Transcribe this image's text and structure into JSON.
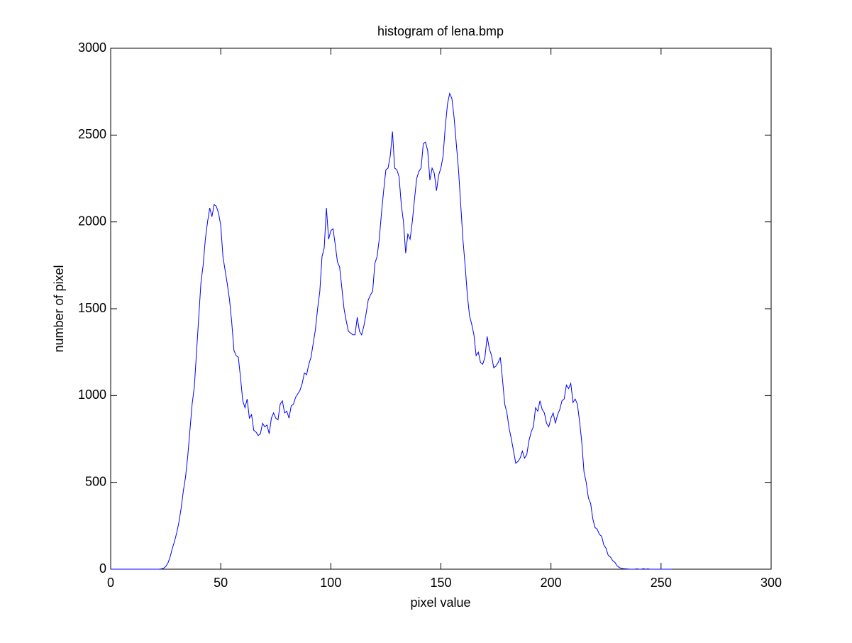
{
  "chart_data": {
    "type": "line",
    "title": "histogram of lena.bmp",
    "x_label": "pixel value",
    "y_label": "number of pixel",
    "x": [
      0,
      1,
      2,
      3,
      4,
      5,
      6,
      7,
      8,
      9,
      10,
      11,
      12,
      13,
      14,
      15,
      16,
      17,
      18,
      19,
      20,
      21,
      22,
      23,
      24,
      25,
      26,
      27,
      28,
      29,
      30,
      31,
      32,
      33,
      34,
      35,
      36,
      37,
      38,
      39,
      40,
      41,
      42,
      43,
      44,
      45,
      46,
      47,
      48,
      49,
      50,
      51,
      52,
      53,
      54,
      55,
      56,
      57,
      58,
      59,
      60,
      61,
      62,
      63,
      64,
      65,
      66,
      67,
      68,
      69,
      70,
      71,
      72,
      73,
      74,
      75,
      76,
      77,
      78,
      79,
      80,
      81,
      82,
      83,
      84,
      85,
      86,
      87,
      88,
      89,
      90,
      91,
      92,
      93,
      94,
      95,
      96,
      97,
      98,
      99,
      100,
      101,
      102,
      103,
      104,
      105,
      106,
      107,
      108,
      109,
      110,
      111,
      112,
      113,
      114,
      115,
      116,
      117,
      118,
      119,
      120,
      121,
      122,
      123,
      124,
      125,
      126,
      127,
      128,
      129,
      130,
      131,
      132,
      133,
      134,
      135,
      136,
      137,
      138,
      139,
      140,
      141,
      142,
      143,
      144,
      145,
      146,
      147,
      148,
      149,
      150,
      151,
      152,
      153,
      154,
      155,
      156,
      157,
      158,
      159,
      160,
      161,
      162,
      163,
      164,
      165,
      166,
      167,
      168,
      169,
      170,
      171,
      172,
      173,
      174,
      175,
      176,
      177,
      178,
      179,
      180,
      181,
      182,
      183,
      184,
      185,
      186,
      187,
      188,
      189,
      190,
      191,
      192,
      193,
      194,
      195,
      196,
      197,
      198,
      199,
      200,
      201,
      202,
      203,
      204,
      205,
      206,
      207,
      208,
      209,
      210,
      211,
      212,
      213,
      214,
      215,
      216,
      217,
      218,
      219,
      220,
      221,
      222,
      223,
      224,
      225,
      226,
      227,
      228,
      229,
      230,
      231,
      232,
      233,
      234,
      235,
      236,
      237,
      238,
      239,
      240,
      241,
      242,
      243,
      244,
      245,
      246,
      247,
      248,
      249,
      250,
      251,
      252,
      253,
      254,
      255
    ],
    "series": [
      {
        "color": "#0000ff",
        "values": [
          0,
          0,
          0,
          0,
          0,
          0,
          0,
          0,
          0,
          0,
          0,
          0,
          0,
          0,
          0,
          0,
          0,
          0,
          0,
          0,
          0,
          0,
          0,
          2,
          5,
          15,
          35,
          70,
          120,
          160,
          210,
          270,
          350,
          450,
          530,
          650,
          800,
          950,
          1050,
          1250,
          1450,
          1650,
          1750,
          1900,
          2000,
          2080,
          2030,
          2100,
          2090,
          2050,
          1980,
          1800,
          1720,
          1640,
          1550,
          1420,
          1260,
          1230,
          1220,
          1100,
          970,
          930,
          980,
          870,
          890,
          800,
          790,
          770,
          780,
          840,
          820,
          830,
          780,
          870,
          900,
          870,
          860,
          950,
          970,
          900,
          910,
          870,
          940,
          950,
          990,
          1010,
          1030,
          1070,
          1130,
          1120,
          1180,
          1220,
          1300,
          1380,
          1500,
          1600,
          1800,
          1850,
          2080,
          1900,
          1950,
          1960,
          1870,
          1770,
          1740,
          1620,
          1500,
          1430,
          1370,
          1360,
          1350,
          1350,
          1450,
          1370,
          1350,
          1400,
          1470,
          1550,
          1580,
          1600,
          1760,
          1800,
          1900,
          2050,
          2180,
          2300,
          2310,
          2380,
          2520,
          2310,
          2300,
          2260,
          2100,
          2000,
          1820,
          1930,
          1900,
          2000,
          2130,
          2250,
          2290,
          2310,
          2450,
          2460,
          2410,
          2240,
          2310,
          2280,
          2180,
          2270,
          2310,
          2380,
          2550,
          2680,
          2740,
          2710,
          2600,
          2450,
          2300,
          2100,
          1900,
          1750,
          1580,
          1460,
          1410,
          1350,
          1230,
          1250,
          1190,
          1180,
          1220,
          1340,
          1270,
          1230,
          1160,
          1170,
          1190,
          1220,
          1090,
          950,
          900,
          810,
          750,
          680,
          610,
          620,
          640,
          680,
          640,
          660,
          740,
          790,
          820,
          930,
          910,
          970,
          920,
          900,
          840,
          820,
          870,
          900,
          840,
          890,
          920,
          970,
          980,
          1060,
          1040,
          1070,
          960,
          980,
          950,
          850,
          730,
          560,
          500,
          410,
          380,
          290,
          240,
          230,
          200,
          190,
          140,
          120,
          80,
          70,
          50,
          40,
          20,
          10,
          5,
          3,
          2,
          1,
          0,
          0,
          0,
          2,
          0,
          0,
          3,
          0,
          2,
          0,
          0,
          0,
          0,
          0,
          0,
          0,
          0,
          0,
          0,
          0
        ]
      }
    ],
    "xlim": [
      0,
      300
    ],
    "xticks": [
      0,
      50,
      100,
      150,
      200,
      250,
      300
    ],
    "ylim": [
      0,
      3000
    ],
    "yticks": [
      0,
      500,
      1000,
      1500,
      2000,
      2500,
      3000
    ],
    "grid": false
  }
}
